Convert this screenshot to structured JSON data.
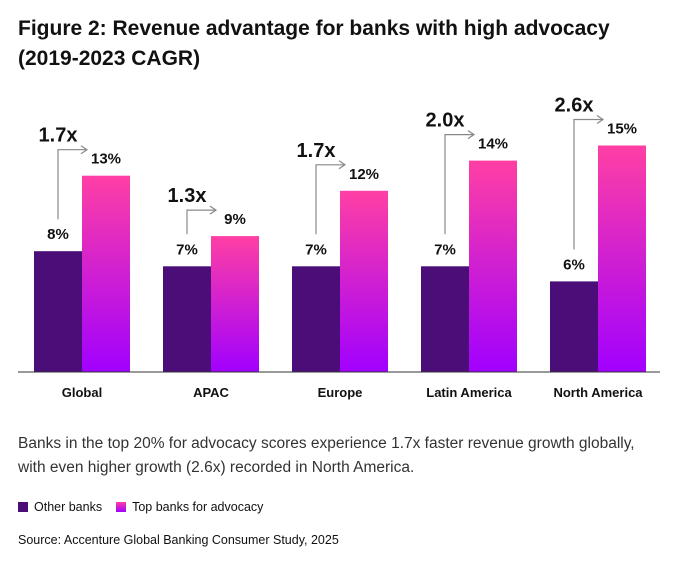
{
  "title": "Figure 2: Revenue advantage for banks with high advocacy (2019-2023 CAGR)",
  "caption": "Banks in the top 20% for advocacy scores experience 1.7x faster revenue growth globally, with even higher growth (2.6x) recorded in North America.",
  "source": "Source: Accenture Global Banking Consumer Study, 2025",
  "legend": {
    "other_label": "Other banks",
    "top_label": "Top banks for advocacy",
    "other_color": "#4b0e78",
    "top_color_start": "#ff3fa4",
    "top_color_end": "#a100ff"
  },
  "chart_data": {
    "type": "bar",
    "categories": [
      "Global",
      "APAC",
      "Europe",
      "Latin America",
      "North America"
    ],
    "series": [
      {
        "name": "Other banks",
        "values": [
          8,
          7,
          7,
          7,
          6
        ],
        "labels": [
          "8%",
          "7%",
          "7%",
          "7%",
          "6%"
        ]
      },
      {
        "name": "Top banks for advocacy",
        "values": [
          13,
          9,
          12,
          14,
          15
        ],
        "labels": [
          "13%",
          "9%",
          "12%",
          "14%",
          "15%"
        ]
      }
    ],
    "multipliers": [
      "1.7x",
      "1.3x",
      "1.7x",
      "2.0x",
      "2.6x"
    ],
    "ylim": [
      0,
      15
    ],
    "xlabel": "",
    "ylabel": ""
  }
}
